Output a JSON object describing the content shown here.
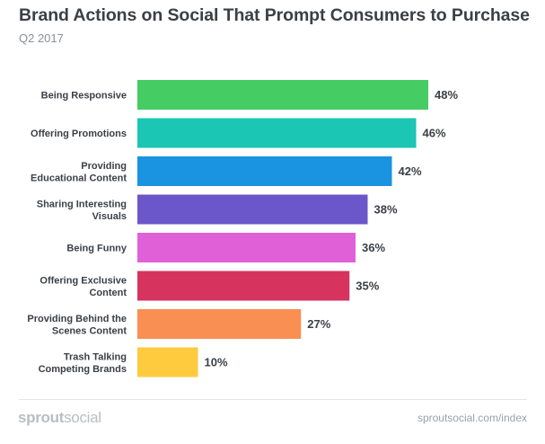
{
  "header": {
    "title": "Brand Actions on Social That Prompt Consumers to Purchase",
    "subtitle": "Q2 2017"
  },
  "footer": {
    "logo_bold": "sprout",
    "logo_light": "social",
    "source": "sproutsocial.com/index"
  },
  "chart_data": {
    "type": "bar",
    "orientation": "horizontal",
    "title": "Brand Actions on Social That Prompt Consumers to Purchase",
    "subtitle": "Q2 2017",
    "categories": [
      [
        "Being Responsive"
      ],
      [
        "Offering Promotions"
      ],
      [
        "Providing",
        "Educational Content"
      ],
      [
        "Sharing Interesting",
        "Visuals"
      ],
      [
        "Being Funny"
      ],
      [
        "Offering Exclusive",
        "Content"
      ],
      [
        "Providing Behind the",
        "Scenes Content"
      ],
      [
        "Trash Talking",
        "Competing Brands"
      ]
    ],
    "values": [
      48,
      46,
      42,
      38,
      36,
      35,
      27,
      10
    ],
    "value_labels": [
      "48%",
      "46%",
      "42%",
      "38%",
      "36%",
      "35%",
      "27%",
      "10%"
    ],
    "unit": "%",
    "colors": [
      "#45cc63",
      "#1bc6b4",
      "#1a93e0",
      "#6b57c9",
      "#e060d8",
      "#d6335f",
      "#f98f52",
      "#fdcb3d"
    ],
    "xlim": [
      0,
      48
    ],
    "grid": false,
    "legend": "none"
  }
}
